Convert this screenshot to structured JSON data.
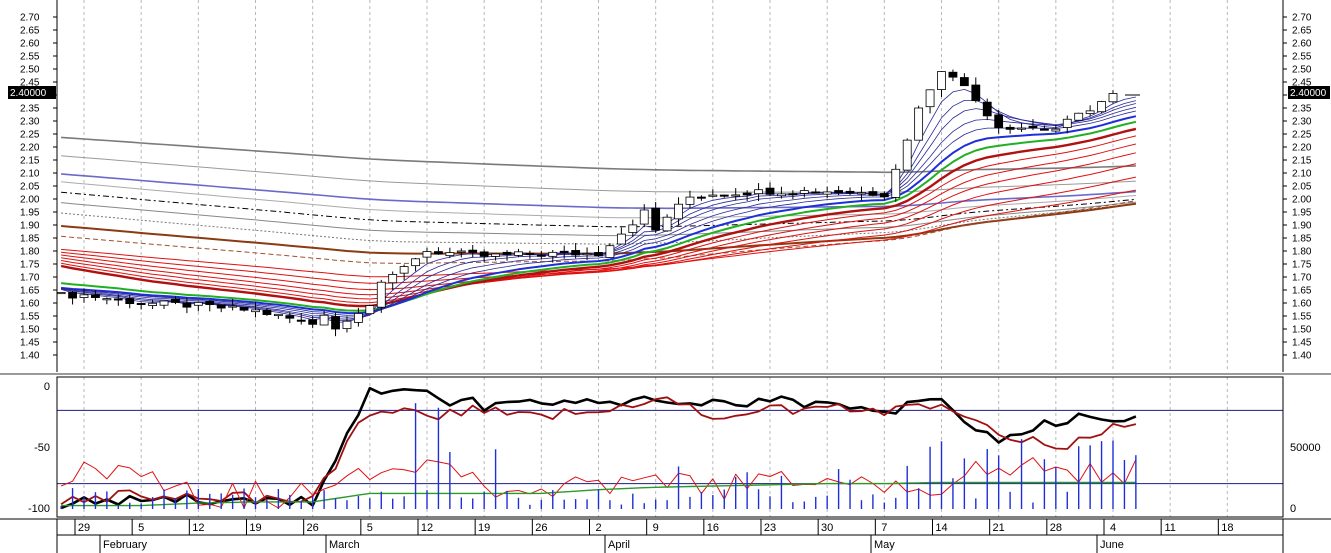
{
  "colors": {
    "background": "#ffffff",
    "grid": "#b8b8b8",
    "axis": "#000000",
    "price_badge_bg": "#000000",
    "price_badge_fg": "#ffffff",
    "short_ma": "#1f2fd8",
    "short_ma_thin": "#28289a",
    "green_ma": "#22b022",
    "red_ma": "#e01010",
    "brown_ma": "#8b3a12",
    "long_ma_gray": "#7a7a7a",
    "long_ma_blue": "#6a6acb",
    "osc_black": "#000000",
    "osc_red": "#e01010",
    "osc_darkred": "#a01010",
    "osc_green": "#2a9a2a",
    "volume_bar": "#1f2fd8",
    "level_line": "#1c1c8a"
  },
  "price_badge": {
    "left": "2.40000",
    "right": "2.40000"
  },
  "time_axis": {
    "day_labels": [
      "29",
      "5",
      "12",
      "19",
      "26",
      "5",
      "12",
      "19",
      "26",
      "2",
      "9",
      "16",
      "23",
      "30",
      "7",
      "14",
      "21",
      "28",
      "4",
      "11",
      "18"
    ],
    "month_labels": [
      "February",
      "March",
      "April",
      "May",
      "June"
    ]
  },
  "chart_data": [
    {
      "type": "candlestick",
      "title": "",
      "ylim": [
        1.35,
        2.72
      ],
      "y_ticks": [
        "2.70",
        "2.65",
        "2.60",
        "2.55",
        "2.50",
        "2.45",
        "2.40",
        "2.35",
        "2.30",
        "2.25",
        "2.20",
        "2.15",
        "2.10",
        "2.05",
        "2.00",
        "1.95",
        "1.90",
        "1.85",
        "1.80",
        "1.75",
        "1.70",
        "1.65",
        "1.60",
        "1.55",
        "1.50",
        "1.45",
        "1.40"
      ],
      "last_price": 2.4,
      "weeks": [
        "29",
        "5",
        "12",
        "19",
        "26",
        "5",
        "12",
        "19",
        "26",
        "2",
        "9",
        "16",
        "23",
        "30",
        "7",
        "14",
        "21",
        "28",
        "4"
      ],
      "close_by_week": [
        1.63,
        1.6,
        1.59,
        1.57,
        1.52,
        1.73,
        1.8,
        1.78,
        1.79,
        1.79,
        1.99,
        2.02,
        2.03,
        2.03,
        2.02,
        2.53,
        2.28,
        2.27,
        2.4
      ],
      "grid": true
    },
    {
      "type": "line",
      "title": "",
      "ylim": [
        -100,
        0
      ],
      "y_ticks_left": [
        "0",
        "-50",
        "-100"
      ],
      "y_ticks_right": [
        "50000",
        "0"
      ],
      "level_lines": [
        -20,
        -80
      ],
      "series": [
        {
          "values_by_week": [
            -96,
            -95,
            -92,
            -95,
            -95,
            -5,
            -8,
            -16,
            -12,
            -15,
            -13,
            -15,
            -12,
            -18,
            -20,
            -14,
            -45,
            -28,
            -27
          ]
        },
        {
          "values_by_week": [
            -92,
            -90,
            -89,
            -92,
            -93,
            -20,
            -25,
            -20,
            -25,
            -20,
            -10,
            -25,
            -20,
            -18,
            -20,
            -15,
            -40,
            -50,
            -35
          ]
        },
        {
          "values_by_week": [
            -70,
            -65,
            -88,
            -90,
            -90,
            -68,
            -60,
            -78,
            -86,
            -85,
            -80,
            -82,
            -80,
            -80,
            -82,
            -78,
            -70,
            -68,
            -69
          ]
        },
        {
          "values_by_week": [
            -98,
            -98,
            -96,
            -95,
            -95,
            -88,
            -88,
            -88,
            -88,
            -85,
            -83,
            -82,
            -81,
            -80,
            -80,
            -79,
            -79,
            -79,
            -79
          ]
        }
      ],
      "grid": true
    }
  ]
}
